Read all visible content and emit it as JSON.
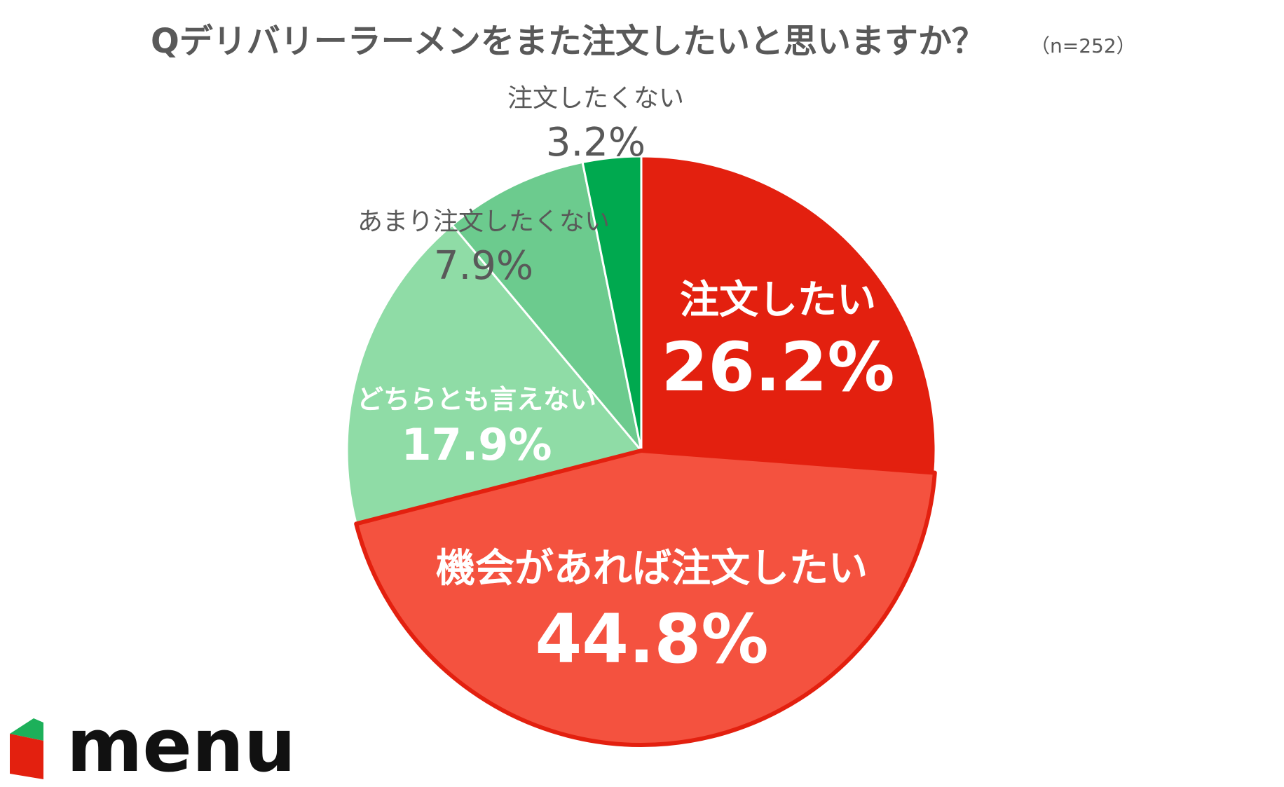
{
  "chart_data": {
    "type": "pie",
    "title": "Qデリバリーラーメンをまた注文したいと思いますか？",
    "subtitle": "（n=252）",
    "slices": [
      {
        "label": "注文したい",
        "value": 26.2,
        "display": "26.2%",
        "color": "#E3200F"
      },
      {
        "label": "機会があれば注文したい",
        "value": 44.8,
        "display": "44.8%",
        "color": "#F4523F"
      },
      {
        "label": "どちらとも言えない",
        "value": 17.9,
        "display": "17.9%",
        "color": "#8FDCA6"
      },
      {
        "label": "あまり注文したくない",
        "value": 7.9,
        "display": "7.9%",
        "color": "#6CCB8E"
      },
      {
        "label": "注文したくない",
        "value": 3.2,
        "display": "3.2%",
        "color": "#00A94F"
      }
    ],
    "start": "12 o'clock",
    "direction": "clockwise"
  },
  "brand": {
    "logo_text": "menu",
    "logo_colors": {
      "red": "#E3200F",
      "green": "#1DB05A"
    }
  }
}
